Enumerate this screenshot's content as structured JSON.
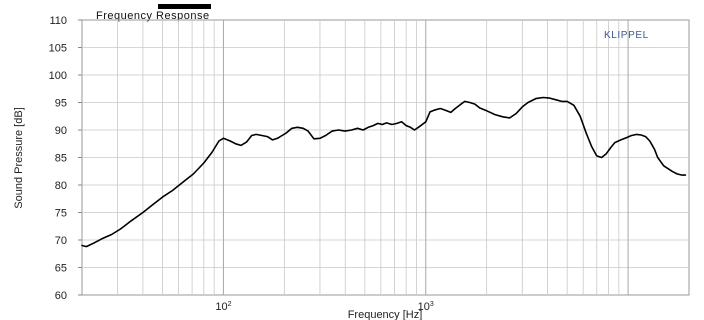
{
  "chart_data": {
    "type": "line",
    "title": "Frequency Response",
    "xlabel": "Frequency  [Hz]",
    "ylabel": "Sound Pressure  [dB]",
    "xscale": "log",
    "xlim": [
      20,
      20000
    ],
    "ylim": [
      60,
      110
    ],
    "yticks": [
      60,
      65,
      70,
      75,
      80,
      85,
      90,
      95,
      100,
      105,
      110
    ],
    "xticks": [
      {
        "value": 100,
        "base": "10",
        "exp": "2"
      },
      {
        "value": 1000,
        "base": "10",
        "exp": "3"
      }
    ],
    "grid": true,
    "watermark": "KLIPPEL",
    "colors": {
      "line": "#000000",
      "grid": "#c8c8c8",
      "watermark": "#3a5a9a",
      "title_bar": "#000000"
    },
    "series": [
      {
        "x": [
          20,
          21,
          23,
          25,
          28,
          31,
          35,
          40,
          45,
          50,
          56,
          63,
          71,
          80,
          88,
          95,
          100,
          108,
          115,
          122,
          130,
          138,
          145,
          155,
          165,
          175,
          185,
          195,
          205,
          218,
          232,
          248,
          262,
          280,
          300,
          320,
          345,
          370,
          400,
          430,
          460,
          490,
          520,
          550,
          580,
          610,
          640,
          680,
          720,
          760,
          800,
          840,
          880,
          920,
          960,
          1000,
          1050,
          1100,
          1180,
          1250,
          1330,
          1400,
          1480,
          1560,
          1650,
          1750,
          1850,
          2000,
          2200,
          2400,
          2600,
          2800,
          3000,
          3200,
          3500,
          3800,
          4100,
          4400,
          4700,
          5000,
          5400,
          5800,
          6200,
          6600,
          7000,
          7400,
          7800,
          8200,
          8600,
          9200,
          9800,
          10400,
          11000,
          11600,
          12200,
          12800,
          13500,
          14000,
          15000,
          16500,
          17500,
          18500,
          19200
        ],
        "y": [
          69.0,
          68.8,
          69.5,
          70.2,
          71.0,
          72.0,
          73.5,
          75.0,
          76.5,
          77.8,
          79.0,
          80.5,
          82.0,
          84.0,
          86.0,
          88.0,
          88.5,
          88.0,
          87.5,
          87.2,
          87.8,
          89.0,
          89.2,
          89.0,
          88.8,
          88.2,
          88.5,
          89.0,
          89.5,
          90.3,
          90.5,
          90.3,
          89.8,
          88.4,
          88.5,
          89.0,
          89.8,
          90.0,
          89.8,
          90.0,
          90.3,
          90.0,
          90.5,
          90.8,
          91.2,
          91.0,
          91.3,
          91.0,
          91.2,
          91.5,
          90.8,
          90.5,
          90.0,
          90.5,
          91.0,
          91.5,
          93.3,
          93.6,
          93.9,
          93.6,
          93.2,
          93.9,
          94.6,
          95.2,
          95.0,
          94.7,
          94.0,
          93.5,
          92.8,
          92.4,
          92.2,
          93.0,
          94.2,
          95.0,
          95.7,
          95.9,
          95.8,
          95.5,
          95.2,
          95.2,
          94.5,
          92.5,
          89.5,
          87.0,
          85.3,
          85.0,
          85.7,
          86.8,
          87.7,
          88.2,
          88.6,
          89.0,
          89.2,
          89.1,
          88.8,
          88.0,
          86.5,
          85.0,
          83.5,
          82.5,
          82.0,
          81.8,
          81.8
        ]
      }
    ]
  }
}
